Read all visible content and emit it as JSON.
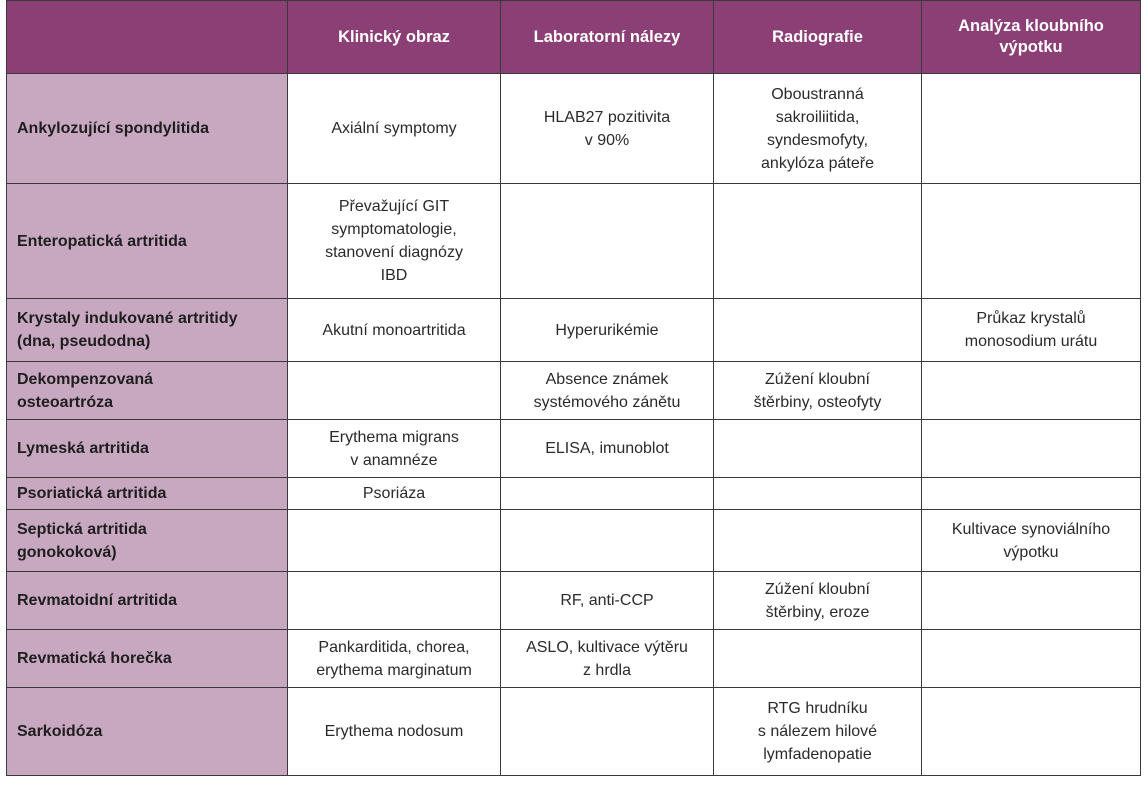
{
  "table": {
    "headers": [
      "",
      "Klinický obraz",
      "Laboratorní nálezy",
      "Radiografie",
      "Analýza kloubního\nvýpotku"
    ],
    "rows": [
      [
        "Ankylozující spondylitida",
        "Axiální symptomy",
        "HLAB27 pozitivita\nv 90%",
        "Oboustranná\nsakroiliitida,\nsyndesmofyty,\nankylóza páteře",
        ""
      ],
      [
        "Enteropatická artritida",
        "Převažující GIT\nsymptomatologie,\nstanovení diagnózy\nIBD",
        "",
        "",
        ""
      ],
      [
        "Krystaly indukované artritidy\n(dna, pseudodna)",
        "Akutní monoartritida",
        "Hyperurikémie",
        "",
        "Průkaz krystalů\nmonosodium urátu"
      ],
      [
        "Dekompenzovaná\nosteoartróza",
        "",
        "Absence známek\nsystémového zánětu",
        "Zúžení kloubní\nštěrbiny, osteofyty",
        ""
      ],
      [
        "Lymeská artritida",
        "Erythema migrans\nv anamnéze",
        "ELISA, imunoblot",
        "",
        ""
      ],
      [
        "Psoriatická artritida",
        "Psoriáza",
        "",
        "",
        ""
      ],
      [
        "Septická artritida\ngonokoková)",
        "",
        "",
        "",
        "Kultivace synoviálního\nvýpotku"
      ],
      [
        "Revmatoidní artritida",
        "",
        "RF, anti-CCP",
        "Zúžení kloubní\nštěrbiny, eroze",
        ""
      ],
      [
        "Revmatická horečka",
        "Pankarditida, chorea,\nerythema marginatum",
        "ASLO, kultivace výtěru\nz hrdla",
        "",
        ""
      ],
      [
        "Sarkoidóza",
        "Erythema nodosum",
        "",
        "RTG hrudníku\ns nálezem hilové\nlymfadenopatie",
        ""
      ]
    ]
  }
}
